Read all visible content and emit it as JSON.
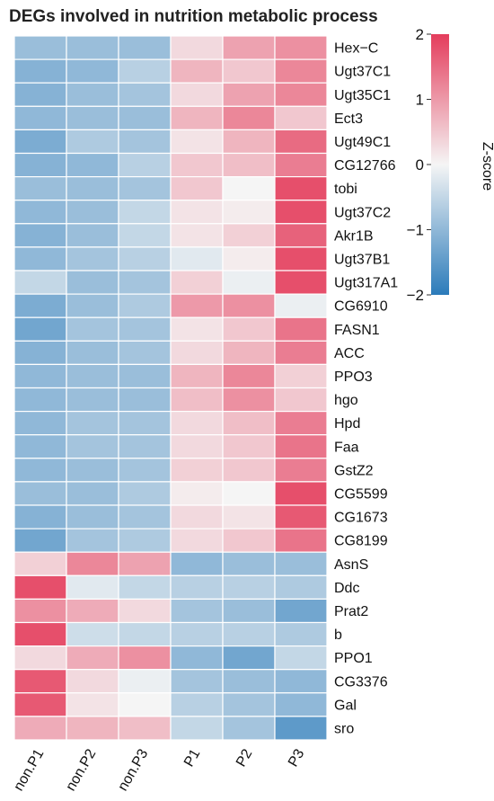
{
  "chart_data": {
    "type": "heatmap",
    "title": "DEGs involved in nutrition metabolic process",
    "columns": [
      "non.P1",
      "non.P2",
      "non.P3",
      "P1",
      "P2",
      "P3"
    ],
    "rows": [
      {
        "gene": "Hex−C",
        "values": [
          -0.9,
          -0.9,
          -0.9,
          0.3,
          0.9,
          1.1
        ]
      },
      {
        "gene": "Ugt37C1",
        "values": [
          -1.1,
          -1.0,
          -0.6,
          0.7,
          0.5,
          1.2
        ]
      },
      {
        "gene": "Ugt35C1",
        "values": [
          -1.1,
          -0.9,
          -0.8,
          0.3,
          0.9,
          1.2
        ]
      },
      {
        "gene": "Ect3",
        "values": [
          -1.0,
          -0.9,
          -0.9,
          0.7,
          1.2,
          0.5
        ]
      },
      {
        "gene": "Ugt49C1",
        "values": [
          -1.2,
          -0.7,
          -0.8,
          0.2,
          0.7,
          1.5
        ]
      },
      {
        "gene": "CG12766",
        "values": [
          -1.1,
          -1.0,
          -0.6,
          0.5,
          0.6,
          1.3
        ]
      },
      {
        "gene": "tobi",
        "values": [
          -0.9,
          -0.9,
          -0.8,
          0.5,
          0.0,
          1.8
        ]
      },
      {
        "gene": "Ugt37C2",
        "values": [
          -1.0,
          -0.9,
          -0.5,
          0.2,
          0.1,
          1.8
        ]
      },
      {
        "gene": "Akr1B",
        "values": [
          -1.1,
          -0.9,
          -0.5,
          0.2,
          0.4,
          1.6
        ]
      },
      {
        "gene": "Ugt37B1",
        "values": [
          -1.0,
          -0.8,
          -0.6,
          -0.2,
          0.1,
          1.8
        ]
      },
      {
        "gene": "Ugt317A1",
        "values": [
          -0.5,
          -0.9,
          -0.8,
          0.4,
          -0.1,
          1.8
        ]
      },
      {
        "gene": "CG6910",
        "values": [
          -1.2,
          -0.9,
          -0.7,
          1.0,
          1.1,
          -0.1
        ]
      },
      {
        "gene": "FASN1",
        "values": [
          -1.3,
          -0.8,
          -0.8,
          0.2,
          0.5,
          1.4
        ]
      },
      {
        "gene": "ACC",
        "values": [
          -1.1,
          -0.9,
          -0.8,
          0.3,
          0.7,
          1.3
        ]
      },
      {
        "gene": "PPO3",
        "values": [
          -1.0,
          -0.9,
          -0.9,
          0.7,
          1.2,
          0.4
        ]
      },
      {
        "gene": "hgo",
        "values": [
          -1.0,
          -0.9,
          -0.9,
          0.6,
          1.1,
          0.5
        ]
      },
      {
        "gene": "Hpd",
        "values": [
          -1.0,
          -0.8,
          -0.8,
          0.3,
          0.6,
          1.3
        ]
      },
      {
        "gene": "Faa",
        "values": [
          -1.0,
          -0.8,
          -0.8,
          0.3,
          0.5,
          1.4
        ]
      },
      {
        "gene": "GstZ2",
        "values": [
          -1.0,
          -0.9,
          -0.8,
          0.4,
          0.5,
          1.3
        ]
      },
      {
        "gene": "CG5599",
        "values": [
          -0.9,
          -0.9,
          -0.7,
          0.1,
          0.0,
          1.8
        ]
      },
      {
        "gene": "CG1673",
        "values": [
          -1.1,
          -0.9,
          -0.8,
          0.3,
          0.2,
          1.7
        ]
      },
      {
        "gene": "CG8199",
        "values": [
          -1.3,
          -0.8,
          -0.7,
          0.3,
          0.5,
          1.4
        ]
      },
      {
        "gene": "AsnS",
        "values": [
          0.4,
          1.2,
          0.9,
          -1.0,
          -0.9,
          -0.9
        ]
      },
      {
        "gene": "Ddc",
        "values": [
          1.8,
          -0.2,
          -0.5,
          -0.6,
          -0.6,
          -0.7
        ]
      },
      {
        "gene": "Prat2",
        "values": [
          1.1,
          0.8,
          0.3,
          -0.8,
          -0.9,
          -1.3
        ]
      },
      {
        "gene": "b",
        "values": [
          1.8,
          -0.4,
          -0.5,
          -0.6,
          -0.6,
          -0.7
        ]
      },
      {
        "gene": "PPO1",
        "values": [
          0.3,
          0.8,
          1.1,
          -1.0,
          -1.3,
          -0.5
        ]
      },
      {
        "gene": "CG3376",
        "values": [
          1.7,
          0.3,
          -0.1,
          -0.8,
          -0.9,
          -1.0
        ]
      },
      {
        "gene": "Gal",
        "values": [
          1.7,
          0.2,
          0.0,
          -0.6,
          -0.8,
          -1.0
        ]
      },
      {
        "gene": "sro",
        "values": [
          0.8,
          0.7,
          0.6,
          -0.5,
          -0.8,
          -1.5
        ]
      }
    ],
    "colorbar": {
      "title": "Z-score",
      "range": [
        -2,
        2
      ],
      "ticks": [
        2,
        1,
        0,
        -1,
        -2
      ],
      "tick_labels": [
        "2",
        "1",
        "0",
        "−1",
        "−2"
      ],
      "colors": {
        "low": "#2b7bba",
        "mid": "#f5f5f5",
        "high": "#e43d5c"
      }
    }
  }
}
